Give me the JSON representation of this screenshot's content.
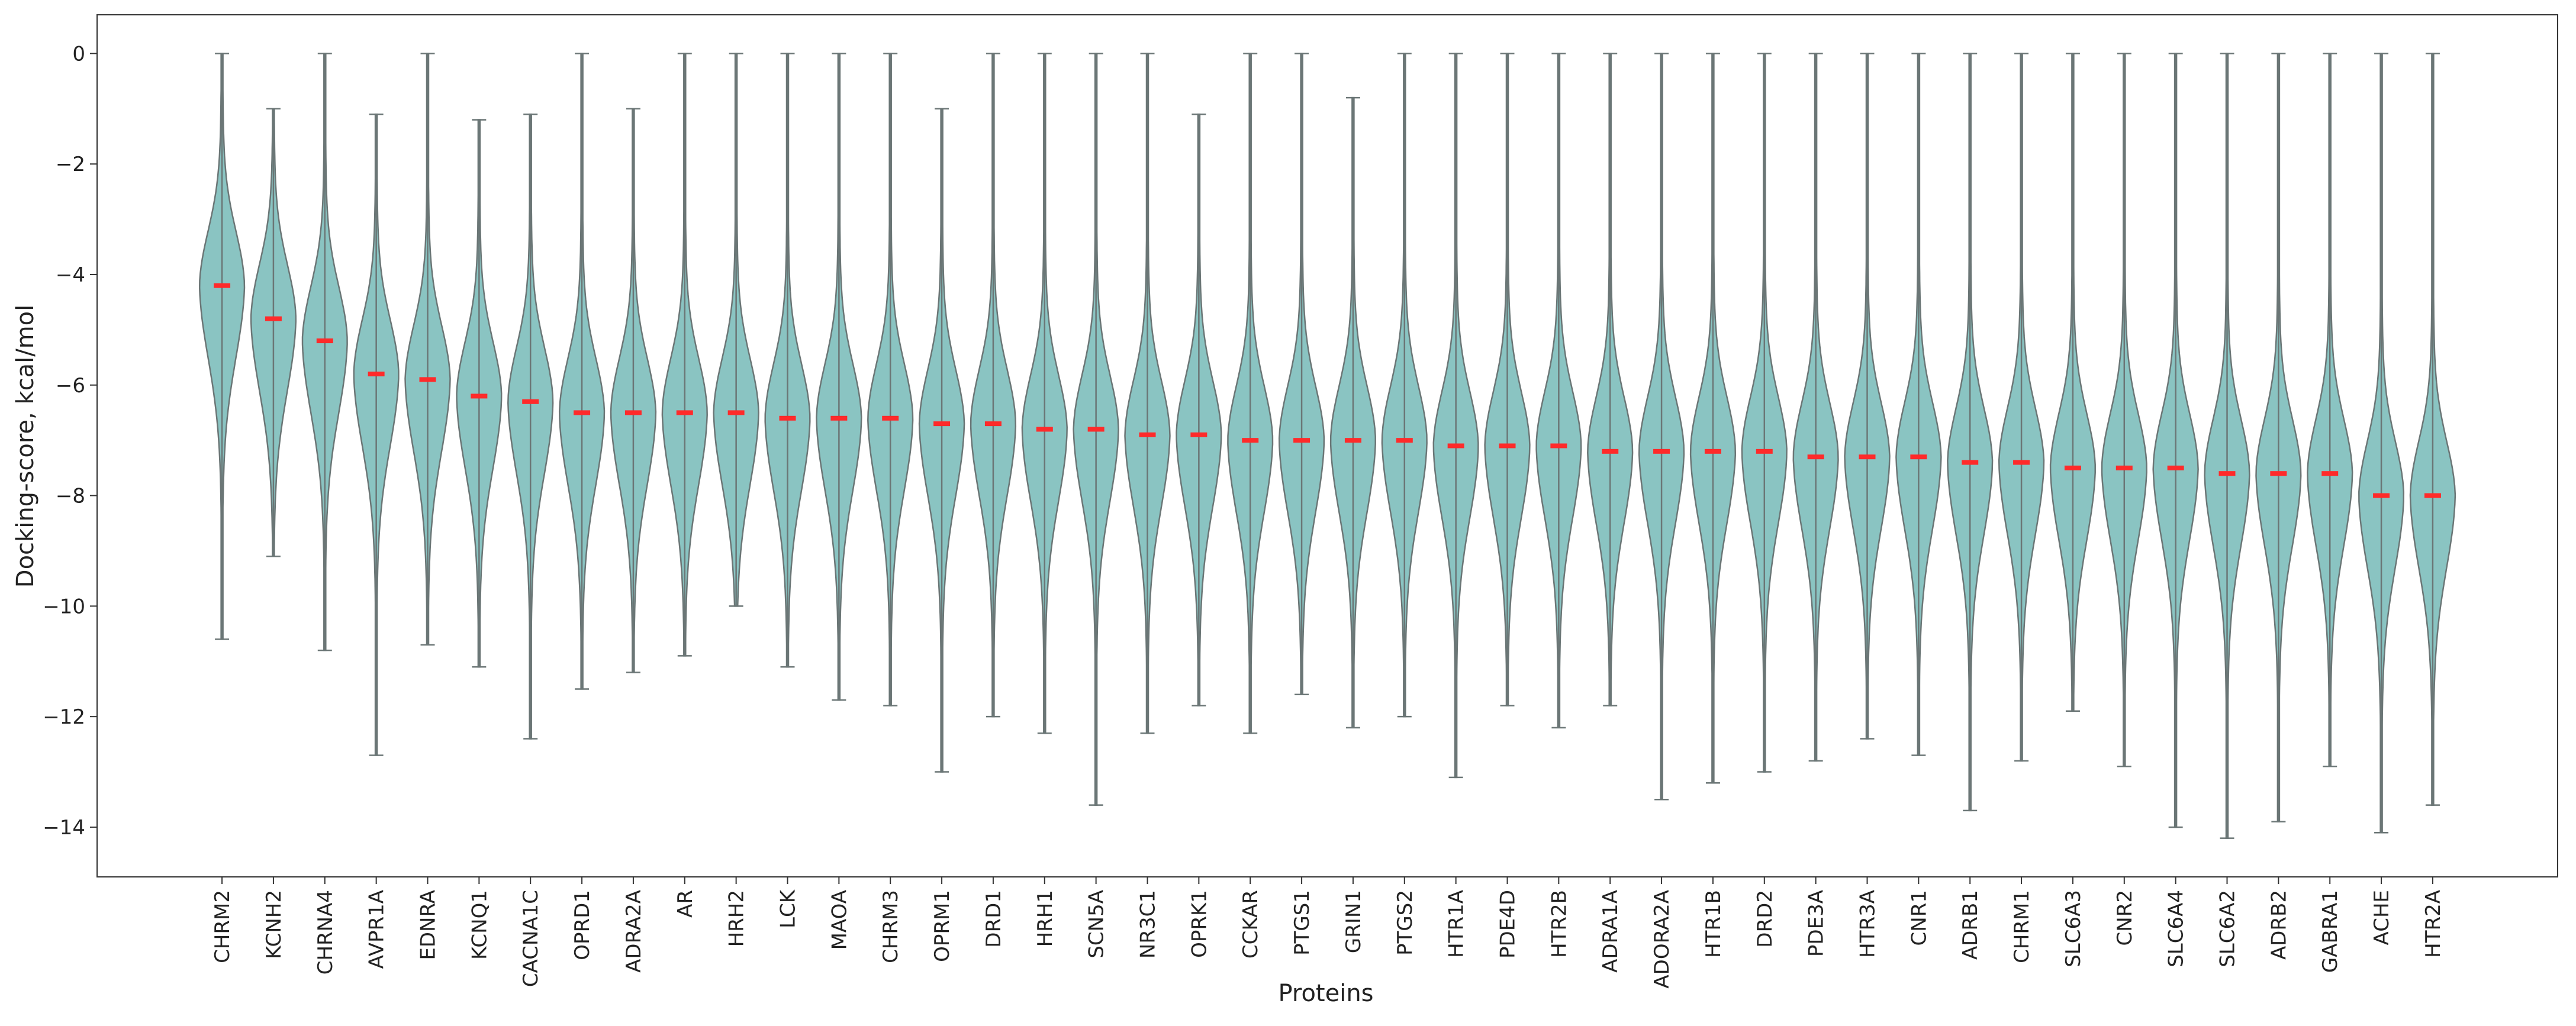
{
  "chart_data": {
    "type": "violin",
    "x_label": "Proteins",
    "y_label": "Docking-score, kcal/mol",
    "categories": [
      "CHRM2",
      "KCNH2",
      "CHRNA4",
      "AVPR1A",
      "EDNRA",
      "KCNQ1",
      "CACNA1C",
      "OPRD1",
      "ADRA2A",
      "AR",
      "HRH2",
      "LCK",
      "MAOA",
      "CHRM3",
      "OPRM1",
      "DRD1",
      "HRH1",
      "SCN5A",
      "NR3C1",
      "OPRK1",
      "CCKAR",
      "PTGS1",
      "GRIN1",
      "PTGS2",
      "HTR1A",
      "PDE4D",
      "HTR2B",
      "ADRA1A",
      "ADORA2A",
      "HTR1B",
      "DRD2",
      "PDE3A",
      "HTR3A",
      "CNR1",
      "ADRB1",
      "CHRM1",
      "SLC6A3",
      "CNR2",
      "SLC6A4",
      "SLC6A2",
      "ADRB2",
      "GABRA1",
      "ACHE",
      "HTR2A"
    ],
    "median": [
      -4.2,
      -4.8,
      -5.2,
      -5.8,
      -5.9,
      -6.2,
      -6.3,
      -6.5,
      -6.5,
      -6.5,
      -6.5,
      -6.6,
      -6.6,
      -6.6,
      -6.7,
      -6.7,
      -6.8,
      -6.8,
      -6.9,
      -6.9,
      -7.0,
      -7.0,
      -7.0,
      -7.0,
      -7.1,
      -7.1,
      -7.1,
      -7.2,
      -7.2,
      -7.2,
      -7.2,
      -7.3,
      -7.3,
      -7.3,
      -7.4,
      -7.4,
      -7.5,
      -7.5,
      -7.5,
      -7.6,
      -7.6,
      -7.6,
      -8.0,
      -8.0
    ],
    "min": [
      -10.6,
      -9.1,
      -10.8,
      -12.7,
      -10.7,
      -11.1,
      -12.4,
      -11.5,
      -11.2,
      -10.9,
      -10.0,
      -11.1,
      -11.7,
      -11.8,
      -13.0,
      -12.0,
      -12.3,
      -13.6,
      -12.3,
      -11.8,
      -12.3,
      -11.6,
      -12.2,
      -12.0,
      -13.1,
      -11.8,
      -12.2,
      -11.8,
      -13.5,
      -13.2,
      -13.0,
      -12.8,
      -12.4,
      -12.7,
      -13.7,
      -12.8,
      -11.9,
      -12.9,
      -14.0,
      -14.2,
      -13.9,
      -12.9,
      -14.1,
      -13.6
    ],
    "max": [
      0,
      -1.0,
      0,
      -1.1,
      0,
      -1.2,
      -1.1,
      0,
      -1.0,
      0,
      0,
      0,
      0,
      0,
      -1.0,
      0,
      0,
      0,
      0,
      -1.1,
      0,
      0,
      -0.8,
      0,
      0,
      0,
      0,
      0,
      0,
      0,
      0,
      0,
      0,
      0,
      0,
      0,
      0,
      0,
      0,
      0,
      0,
      0,
      0,
      0
    ],
    "color": "#8ac4c2",
    "median_color": "#ff2a2a",
    "ylim": [
      -14.9,
      0.7
    ],
    "yticks": [
      0,
      {
        "value": -2,
        "label": "−2"
      },
      {
        "value": -4,
        "label": "−4"
      },
      {
        "value": -6,
        "label": "−6"
      },
      {
        "value": -8,
        "label": "−8"
      },
      {
        "value": -10,
        "label": "−10"
      },
      {
        "value": -12,
        "label": "−12"
      },
      {
        "value": -14,
        "label": "−14"
      }
    ]
  }
}
